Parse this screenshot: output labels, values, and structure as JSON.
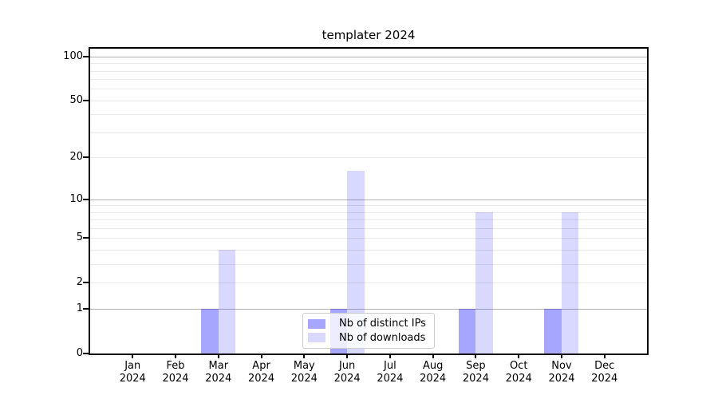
{
  "title": "templater 2024",
  "chart_data": {
    "type": "bar",
    "title": "templater 2024",
    "categories": [
      "Jan 2024",
      "Feb 2024",
      "Mar 2024",
      "Apr 2024",
      "May 2024",
      "Jun 2024",
      "Jul 2024",
      "Aug 2024",
      "Sep 2024",
      "Oct 2024",
      "Nov 2024",
      "Dec 2024"
    ],
    "series": [
      {
        "name": "Nb of distinct IPs",
        "color": "rgba(0,0,255,0.35)",
        "values": [
          0,
          0,
          1,
          0,
          0,
          1,
          0,
          0,
          1,
          0,
          1,
          0
        ]
      },
      {
        "name": "Nb of downloads",
        "color": "rgba(0,0,255,0.15)",
        "values": [
          0,
          0,
          4,
          0,
          0,
          16,
          0,
          0,
          8,
          0,
          8,
          0
        ]
      }
    ],
    "xlabel": "",
    "ylabel": "",
    "yscale": "log1p",
    "ylim": [
      0,
      113
    ],
    "yticks": [
      0,
      1,
      2,
      5,
      10,
      20,
      50,
      100
    ],
    "grid": {
      "on": true,
      "major_lines": [
        1,
        10,
        100
      ],
      "minor_lines": [
        2,
        3,
        4,
        5,
        6,
        7,
        8,
        9,
        20,
        30,
        40,
        50,
        60,
        70,
        80,
        90
      ]
    },
    "legend_position": "lower center"
  },
  "colors": {
    "axis": "#000000",
    "grid_major": "#b3b3b3",
    "grid_minor": "#e9e9e9",
    "legend_border": "#cccccc",
    "background": "#ffffff"
  }
}
